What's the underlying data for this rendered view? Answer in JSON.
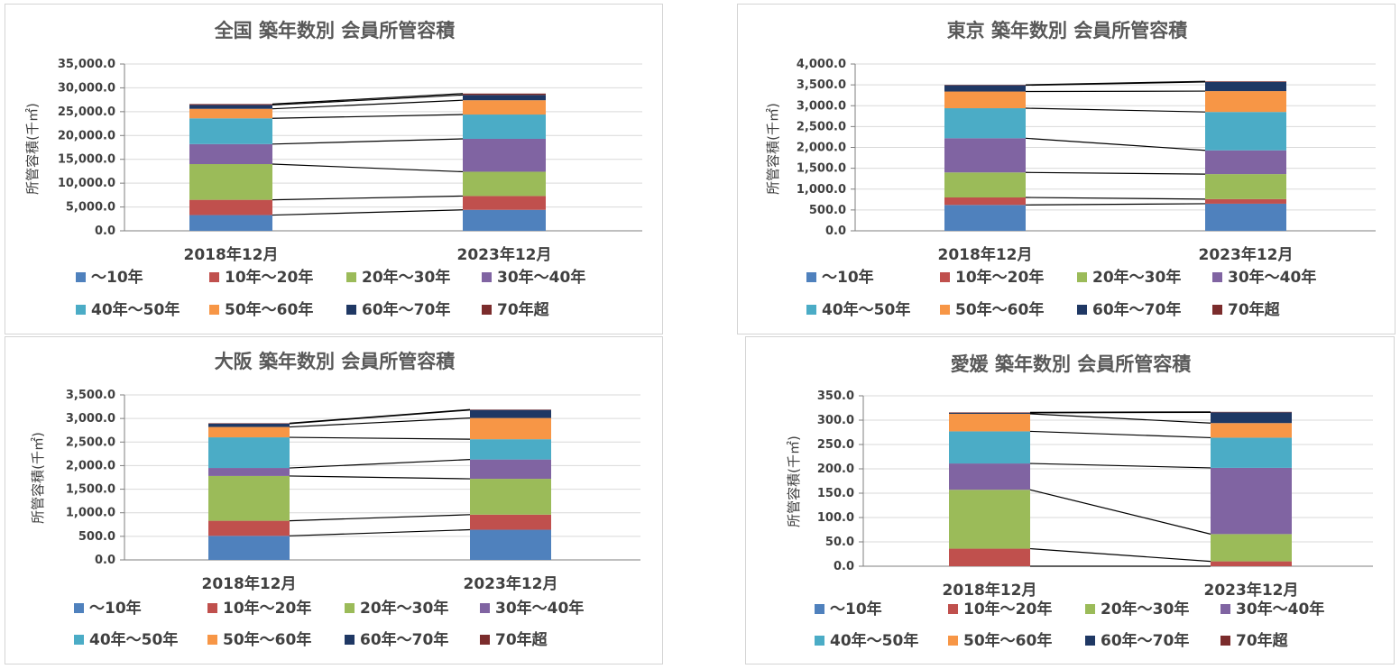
{
  "colors": [
    "#4f81bd",
    "#c0504d",
    "#9bbb59",
    "#8064a2",
    "#4bacc6",
    "#f79646",
    "#1f3864",
    "#7b2c2c"
  ],
  "chart_data": [
    {
      "type": "bar",
      "stacked": true,
      "title": "全国  築年数別  会員所管容積",
      "ylabel": "所管容積(千㎡)",
      "categories": [
        "2018年12月",
        "2023年12月"
      ],
      "ylim": [
        0,
        35000
      ],
      "yticks": [
        "0.0",
        "5,000.0",
        "10,000.0",
        "15,000.0",
        "20,000.0",
        "25,000.0",
        "30,000.0",
        "35,000.0"
      ],
      "legend_position": "bottom",
      "series": [
        {
          "name": "～10年",
          "values": [
            3300,
            4400
          ]
        },
        {
          "name": "10年～20年",
          "values": [
            3200,
            2900
          ]
        },
        {
          "name": "20年～30年",
          "values": [
            7500,
            5100
          ]
        },
        {
          "name": "30年～40年",
          "values": [
            4200,
            6900
          ]
        },
        {
          "name": "40年～50年",
          "values": [
            5400,
            5100
          ]
        },
        {
          "name": "50年～60年",
          "values": [
            2000,
            3000
          ]
        },
        {
          "name": "60年～70年",
          "values": [
            800,
            1100
          ]
        },
        {
          "name": "70年超",
          "values": [
            200,
            300
          ]
        }
      ]
    },
    {
      "type": "bar",
      "stacked": true,
      "title": "東京  築年数別  会員所管容積",
      "ylabel": "所管容積(千㎡)",
      "categories": [
        "2018年12月",
        "2023年12月"
      ],
      "ylim": [
        0,
        4000
      ],
      "yticks": [
        "0.0",
        "500.0",
        "1,000.0",
        "1,500.0",
        "2,000.0",
        "2,500.0",
        "3,000.0",
        "3,500.0",
        "4,000.0"
      ],
      "legend_position": "bottom",
      "series": [
        {
          "name": "～10年",
          "values": [
            620,
            650
          ]
        },
        {
          "name": "10年～20年",
          "values": [
            180,
            110
          ]
        },
        {
          "name": "20年～30年",
          "values": [
            600,
            600
          ]
        },
        {
          "name": "30年～40年",
          "values": [
            820,
            570
          ]
        },
        {
          "name": "40年～50年",
          "values": [
            720,
            920
          ]
        },
        {
          "name": "50年～60年",
          "values": [
            400,
            500
          ]
        },
        {
          "name": "60年～70年",
          "values": [
            150,
            220
          ]
        },
        {
          "name": "70年超",
          "values": [
            10,
            15
          ]
        }
      ]
    },
    {
      "type": "bar",
      "stacked": true,
      "title": "大阪  築年数別  会員所管容積",
      "ylabel": "所管容積(千㎡)",
      "categories": [
        "2018年12月",
        "2023年12月"
      ],
      "ylim": [
        0,
        3500
      ],
      "yticks": [
        "0.0",
        "500.0",
        "1,000.0",
        "1,500.0",
        "2,000.0",
        "2,500.0",
        "3,000.0",
        "3,500.0"
      ],
      "legend_position": "bottom",
      "series": [
        {
          "name": "～10年",
          "values": [
            510,
            640
          ]
        },
        {
          "name": "10年～20年",
          "values": [
            320,
            320
          ]
        },
        {
          "name": "20年～30年",
          "values": [
            950,
            760
          ]
        },
        {
          "name": "30年～40年",
          "values": [
            170,
            410
          ]
        },
        {
          "name": "40年～50年",
          "values": [
            650,
            430
          ]
        },
        {
          "name": "50年～60年",
          "values": [
            220,
            450
          ]
        },
        {
          "name": "60年～70年",
          "values": [
            70,
            170
          ]
        },
        {
          "name": "70年超",
          "values": [
            10,
            10
          ]
        }
      ]
    },
    {
      "type": "bar",
      "stacked": true,
      "title": "愛媛  築年数別  会員所管容積",
      "ylabel": "所管容積(千㎡)",
      "categories": [
        "2018年12月",
        "2023年12月"
      ],
      "ylim": [
        0,
        350
      ],
      "yticks": [
        "0.0",
        "50.0",
        "100.0",
        "150.0",
        "200.0",
        "250.0",
        "300.0",
        "350.0"
      ],
      "legend_position": "bottom",
      "series": [
        {
          "name": "～10年",
          "values": [
            0,
            0
          ]
        },
        {
          "name": "10年～20年",
          "values": [
            36,
            10
          ]
        },
        {
          "name": "20年～30年",
          "values": [
            121,
            56
          ]
        },
        {
          "name": "30年～40年",
          "values": [
            54,
            136
          ]
        },
        {
          "name": "40年～50年",
          "values": [
            66,
            62
          ]
        },
        {
          "name": "50年～60年",
          "values": [
            36,
            30
          ]
        },
        {
          "name": "60年～70年",
          "values": [
            2,
            22
          ]
        },
        {
          "name": "70年超",
          "values": [
            1,
            1
          ]
        }
      ]
    }
  ]
}
